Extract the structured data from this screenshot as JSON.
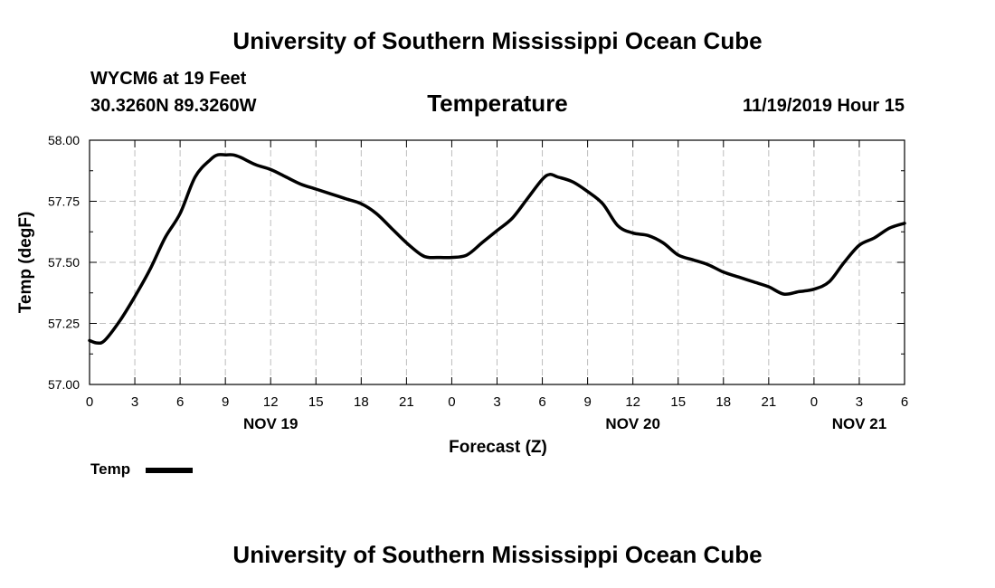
{
  "header": {
    "title_top": "University of Southern Mississippi Ocean Cube",
    "title_bottom": "University of Southern Mississippi Ocean Cube",
    "station": "WYCM6 at 19 Feet",
    "coords": "30.3260N 89.3260W",
    "datetime": "11/19/2019 Hour 15"
  },
  "chart_data": {
    "type": "line",
    "title": "Temperature",
    "xlabel": "Forecast (Z)",
    "ylabel": "Temp (degF)",
    "xlim": [
      0,
      54
    ],
    "ylim": [
      57.0,
      58.0
    ],
    "x_ticks": [
      {
        "pos": 0,
        "label": "0"
      },
      {
        "pos": 3,
        "label": "3"
      },
      {
        "pos": 6,
        "label": "6"
      },
      {
        "pos": 9,
        "label": "9"
      },
      {
        "pos": 12,
        "label": "12"
      },
      {
        "pos": 15,
        "label": "15"
      },
      {
        "pos": 18,
        "label": "18"
      },
      {
        "pos": 21,
        "label": "21"
      },
      {
        "pos": 24,
        "label": "0"
      },
      {
        "pos": 27,
        "label": "3"
      },
      {
        "pos": 30,
        "label": "6"
      },
      {
        "pos": 33,
        "label": "9"
      },
      {
        "pos": 36,
        "label": "12"
      },
      {
        "pos": 39,
        "label": "15"
      },
      {
        "pos": 42,
        "label": "18"
      },
      {
        "pos": 45,
        "label": "21"
      },
      {
        "pos": 48,
        "label": "0"
      },
      {
        "pos": 51,
        "label": "3"
      },
      {
        "pos": 54,
        "label": "6"
      }
    ],
    "y_ticks": [
      "57.00",
      "57.25",
      "57.50",
      "57.75",
      "58.00"
    ],
    "date_labels": [
      {
        "pos": 12,
        "label": "NOV 19"
      },
      {
        "pos": 36,
        "label": "NOV 20"
      },
      {
        "pos": 51,
        "label": "NOV 21"
      }
    ],
    "grid": true,
    "legend": "bottom-left",
    "series": [
      {
        "name": "Temp",
        "color": "#000000",
        "x": [
          0,
          0.5,
          1,
          2,
          3,
          4,
          5,
          6,
          7,
          8,
          8.5,
          9,
          9.5,
          10,
          11,
          12,
          13,
          14,
          15,
          16,
          17,
          18,
          19,
          20,
          21,
          22,
          22.5,
          23,
          24,
          25,
          26,
          27,
          28,
          29,
          30,
          30.5,
          31,
          32,
          33,
          34,
          35,
          36,
          37,
          38,
          39,
          40,
          41,
          42,
          43,
          44,
          45,
          46,
          47,
          48,
          49,
          50,
          51,
          52,
          53,
          54
        ],
        "values": [
          57.18,
          57.17,
          57.18,
          57.26,
          57.36,
          57.47,
          57.6,
          57.7,
          57.85,
          57.92,
          57.94,
          57.94,
          57.94,
          57.93,
          57.9,
          57.88,
          57.85,
          57.82,
          57.8,
          57.78,
          57.76,
          57.74,
          57.7,
          57.64,
          57.58,
          57.53,
          57.52,
          57.52,
          57.52,
          57.53,
          57.58,
          57.63,
          57.68,
          57.76,
          57.84,
          57.86,
          57.85,
          57.83,
          57.79,
          57.74,
          57.65,
          57.62,
          57.61,
          57.58,
          57.53,
          57.51,
          57.49,
          57.46,
          57.44,
          57.42,
          57.4,
          57.37,
          57.38,
          57.39,
          57.42,
          57.5,
          57.57,
          57.6,
          57.64,
          57.66
        ]
      }
    ]
  }
}
